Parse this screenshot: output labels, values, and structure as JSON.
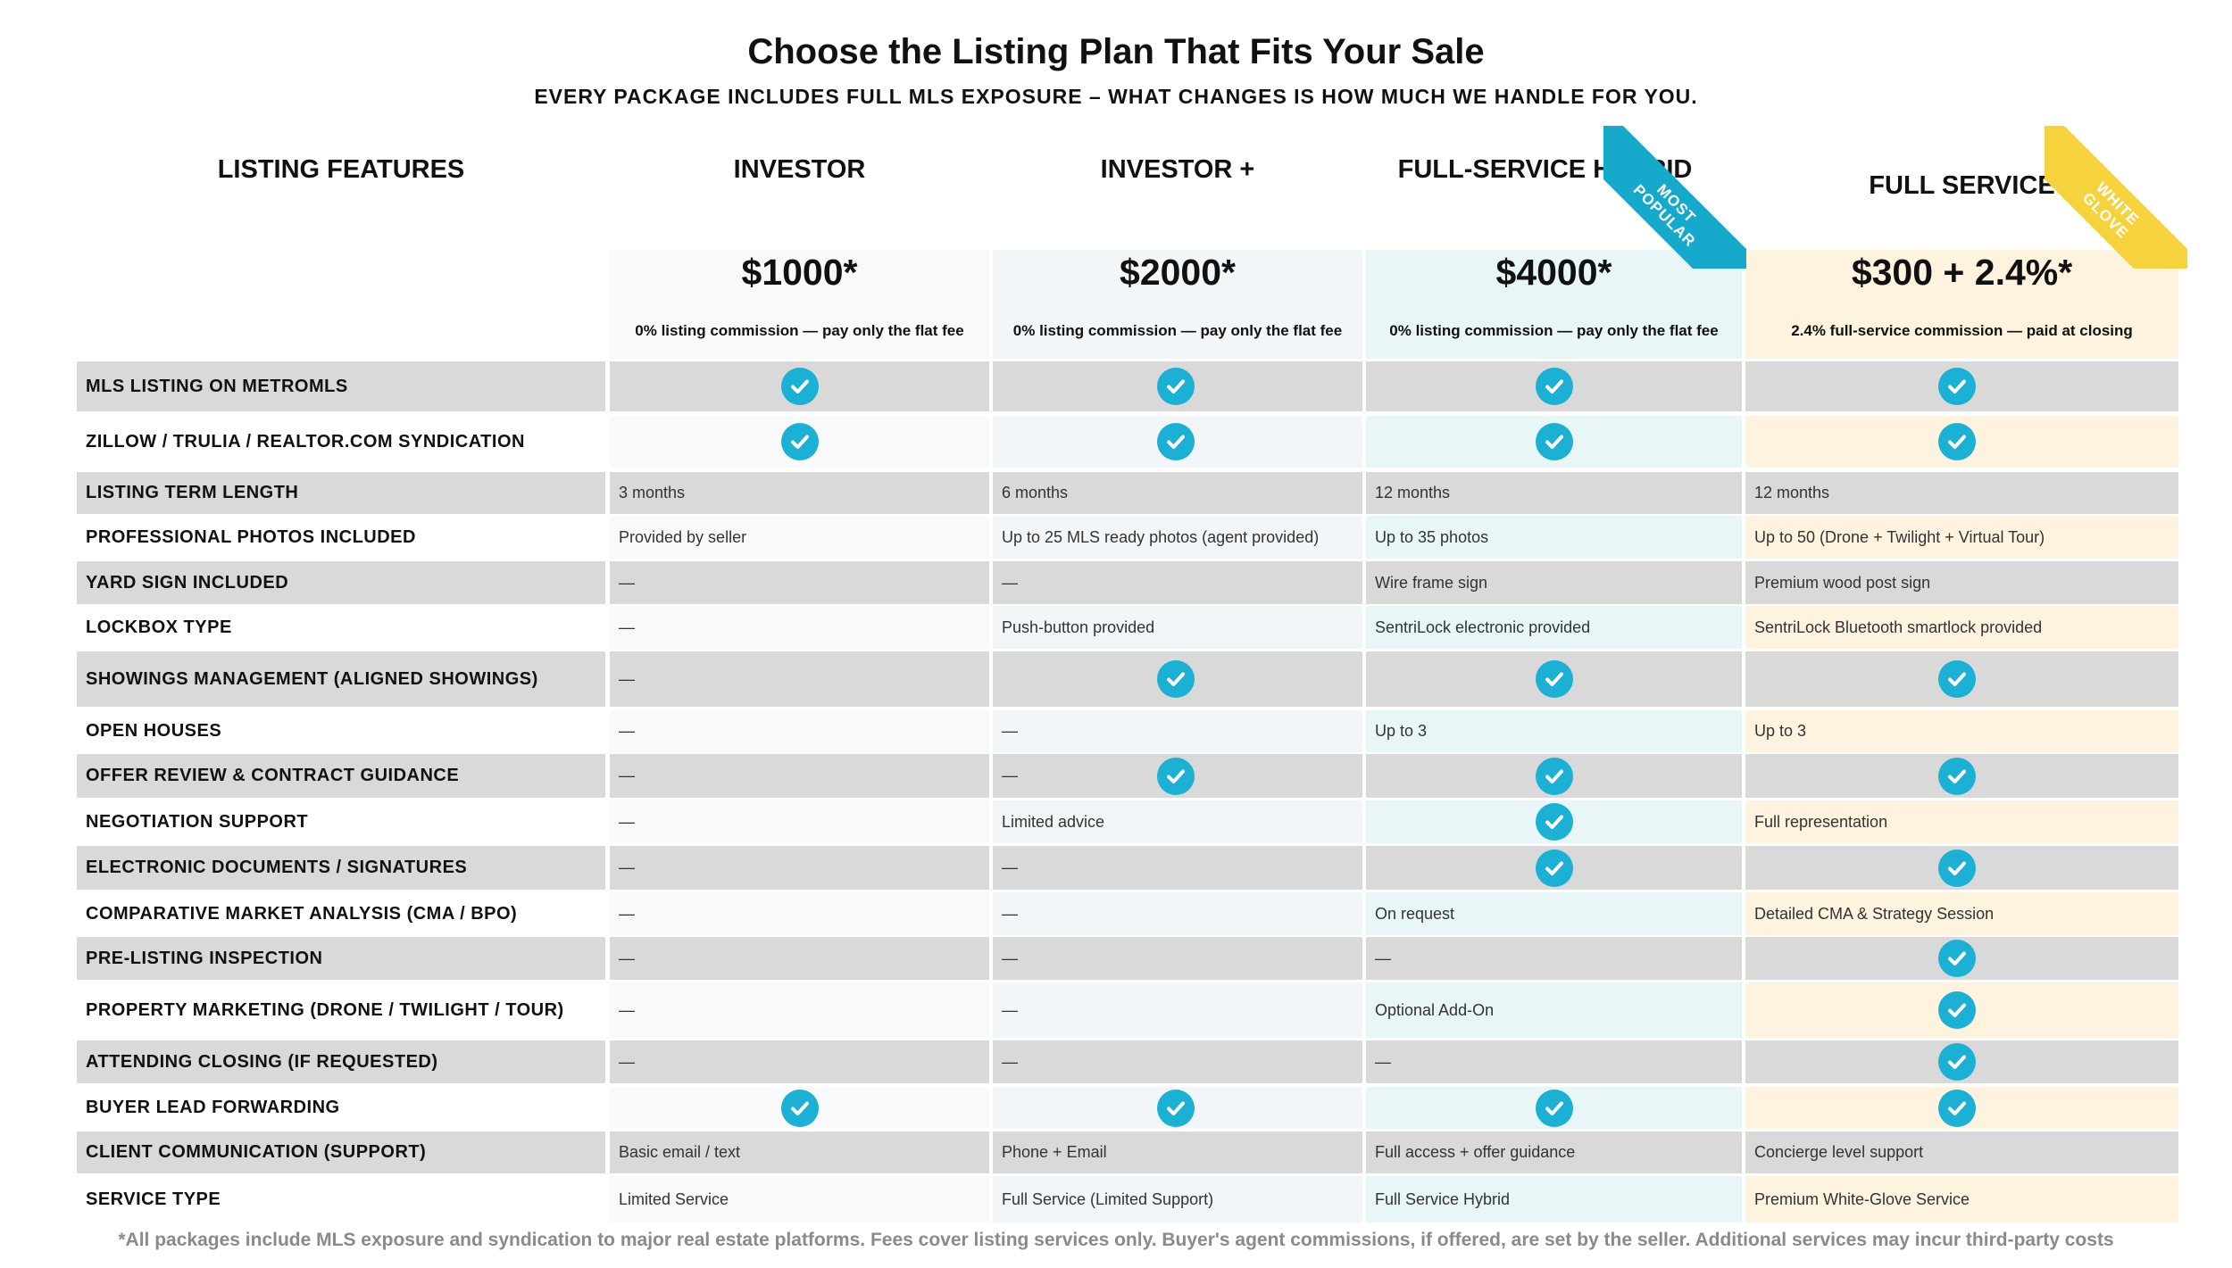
{
  "header": {
    "title": "Choose the Listing Plan That Fits Your Sale",
    "subtitle": "EVERY PACKAGE INCLUDES FULL MLS EXPOSURE – WHAT CHANGES IS HOW MUCH WE HANDLE FOR YOU.",
    "features_heading": "LISTING FEATURES"
  },
  "plans": [
    {
      "name": "INVESTOR",
      "price": "$1000*",
      "note": "0% listing commission — pay only the flat fee",
      "ribbon": null
    },
    {
      "name": "INVESTOR +",
      "price": "$2000*",
      "note": "0% listing commission — pay only the flat fee",
      "ribbon": null
    },
    {
      "name": "FULL-SERVICE HYBRID",
      "price": "$4000*",
      "note": "0% listing commission — pay only the flat fee",
      "ribbon": {
        "line1": "MOST",
        "line2": "POPULAR"
      }
    },
    {
      "name": "FULL SERVICE",
      "price": "$300 + 2.4%*",
      "note": "2.4% full-service commission — paid at closing",
      "ribbon": {
        "line1": "WHITE",
        "line2": "GLOVE"
      }
    }
  ],
  "rows": [
    {
      "label": "MLS LISTING ON METROMLS",
      "values": [
        "check",
        "check",
        "check",
        "check"
      ]
    },
    {
      "label": "ZILLOW / TRULIA / REALTOR.COM SYNDICATION",
      "values": [
        "check",
        "check",
        "check",
        "check"
      ]
    },
    {
      "label": "LISTING TERM LENGTH",
      "values": [
        "3 months",
        "6 months",
        "12 months",
        "12 months"
      ]
    },
    {
      "label": "PROFESSIONAL PHOTOS INCLUDED",
      "values": [
        "Provided by seller",
        "Up to 25 MLS ready photos (agent provided)",
        "Up to 35 photos",
        "Up to 50 (Drone + Twilight + Virtual Tour)"
      ]
    },
    {
      "label": "YARD SIGN INCLUDED",
      "values": [
        "—",
        "—",
        "Wire frame sign",
        "Premium wood post sign"
      ]
    },
    {
      "label": "LOCKBOX TYPE",
      "values": [
        "—",
        "Push-button provided",
        "SentriLock electronic provided",
        "SentriLock Bluetooth smartlock provided"
      ]
    },
    {
      "label": "SHOWINGS MANAGEMENT (ALIGNED SHOWINGS)",
      "values": [
        "—",
        "check",
        "check",
        "check"
      ]
    },
    {
      "label": "OPEN HOUSES",
      "values": [
        "—",
        "—",
        "Up to 3",
        "Up to 3"
      ]
    },
    {
      "label": "OFFER REVIEW & CONTRACT GUIDANCE",
      "values": [
        "—",
        "— check",
        "check",
        "check"
      ]
    },
    {
      "label": "NEGOTIATION SUPPORT",
      "values": [
        "—",
        "Limited advice",
        "check",
        "Full representation"
      ]
    },
    {
      "label": "ELECTRONIC DOCUMENTS / SIGNATURES",
      "values": [
        "—",
        "—",
        "check",
        "check"
      ]
    },
    {
      "label": "COMPARATIVE MARKET ANALYSIS (CMA / BPO)",
      "values": [
        "—",
        "—",
        "On request",
        "Detailed CMA & Strategy Session"
      ]
    },
    {
      "label": "PRE-LISTING INSPECTION",
      "values": [
        "—",
        "—",
        "—",
        "check"
      ]
    },
    {
      "label": "PROPERTY MARKETING (DRONE / TWILIGHT / TOUR)",
      "values": [
        "—",
        "—",
        "Optional Add-On",
        "check"
      ]
    },
    {
      "label": "ATTENDING CLOSING (IF REQUESTED)",
      "values": [
        "—",
        "—",
        "—",
        "check"
      ]
    },
    {
      "label": "BUYER LEAD FORWARDING",
      "values": [
        "check",
        "check",
        "check",
        "check"
      ]
    },
    {
      "label": "CLIENT COMMUNICATION (SUPPORT)",
      "values": [
        "Basic email / text",
        "Phone + Email",
        "Full access + offer guidance",
        "Concierge level support"
      ]
    },
    {
      "label": "SERVICE TYPE",
      "values": [
        "Limited Service",
        "Full Service (Limited Support)",
        "Full Service Hybrid",
        "Premium White-Glove Service"
      ]
    }
  ],
  "footnote": "*All packages include MLS exposure and syndication to major real estate platforms. Fees cover listing services only. Buyer's agent commissions, if offered, are set by the seller. Additional services may incur third-party costs",
  "colors": {
    "check": "#1bb0d4",
    "ribbon_popular": "#17a9cc",
    "ribbon_glove": "#f6d33c",
    "row_dark": "#d9d9d9",
    "investor_light": "#f7f9fb",
    "investor_plus_light": "#f2f6f9",
    "hybrid_light": "#e8f6f8",
    "full_light": "#fdf3de"
  }
}
